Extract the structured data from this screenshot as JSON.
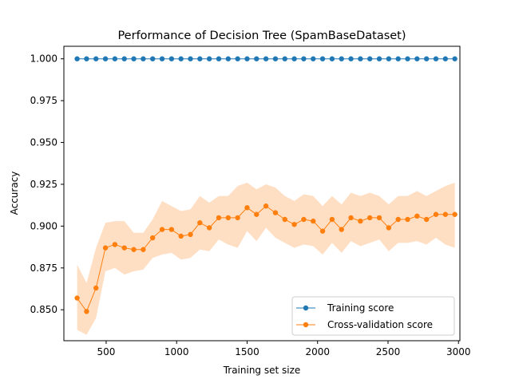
{
  "chart_data": {
    "type": "line",
    "title": "Performance of Decision Tree (SpamBaseDataset)",
    "xlabel": "Training set size",
    "ylabel": "Accuracy",
    "xlim": [
      200,
      3010
    ],
    "ylim": [
      0.8315,
      1.0075
    ],
    "xticks": [
      500,
      1000,
      1500,
      2000,
      2500,
      3000
    ],
    "yticks": [
      0.85,
      0.875,
      0.9,
      0.925,
      0.95,
      0.975,
      1.0
    ],
    "ytick_decimals": 3,
    "grid": false,
    "legend_position": "lower-right",
    "x": [
      294,
      361,
      428,
      495,
      562,
      629,
      696,
      763,
      830,
      897,
      964,
      1031,
      1098,
      1165,
      1232,
      1299,
      1366,
      1433,
      1500,
      1567,
      1634,
      1701,
      1768,
      1835,
      1902,
      1969,
      2036,
      2103,
      2170,
      2237,
      2304,
      2371,
      2438,
      2505,
      2572,
      2639,
      2706,
      2773,
      2840,
      2907,
      2974
    ],
    "series": [
      {
        "name": "Training score",
        "color": "#1f77b4",
        "values": [
          1.0,
          1.0,
          1.0,
          1.0,
          1.0,
          1.0,
          1.0,
          1.0,
          1.0,
          1.0,
          1.0,
          1.0,
          1.0,
          1.0,
          1.0,
          1.0,
          1.0,
          1.0,
          1.0,
          1.0,
          1.0,
          1.0,
          1.0,
          1.0,
          1.0,
          1.0,
          1.0,
          1.0,
          1.0,
          1.0,
          1.0,
          1.0,
          1.0,
          1.0,
          1.0,
          1.0,
          1.0,
          1.0,
          1.0,
          1.0,
          1.0
        ]
      },
      {
        "name": "Cross-validation score",
        "color": "#ff7f0e",
        "band_color": "#ffdfc4",
        "values": [
          0.857,
          0.849,
          0.863,
          0.887,
          0.889,
          0.887,
          0.886,
          0.886,
          0.893,
          0.898,
          0.898,
          0.894,
          0.895,
          0.902,
          0.899,
          0.905,
          0.905,
          0.905,
          0.911,
          0.907,
          0.912,
          0.908,
          0.904,
          0.901,
          0.904,
          0.903,
          0.897,
          0.904,
          0.898,
          0.905,
          0.903,
          0.905,
          0.905,
          0.899,
          0.904,
          0.904,
          0.906,
          0.904,
          0.907,
          0.907,
          0.907
        ],
        "band_upper": [
          0.877,
          0.866,
          0.887,
          0.902,
          0.903,
          0.903,
          0.896,
          0.896,
          0.904,
          0.915,
          0.912,
          0.909,
          0.91,
          0.918,
          0.914,
          0.918,
          0.918,
          0.924,
          0.926,
          0.922,
          0.925,
          0.923,
          0.918,
          0.915,
          0.919,
          0.918,
          0.912,
          0.918,
          0.913,
          0.92,
          0.918,
          0.92,
          0.918,
          0.913,
          0.918,
          0.918,
          0.921,
          0.918,
          0.921,
          0.924,
          0.926
        ],
        "band_lower": [
          0.838,
          0.835,
          0.845,
          0.873,
          0.875,
          0.871,
          0.873,
          0.874,
          0.881,
          0.883,
          0.884,
          0.88,
          0.881,
          0.886,
          0.885,
          0.892,
          0.889,
          0.887,
          0.897,
          0.891,
          0.899,
          0.893,
          0.89,
          0.887,
          0.889,
          0.888,
          0.883,
          0.89,
          0.884,
          0.891,
          0.888,
          0.89,
          0.892,
          0.885,
          0.89,
          0.89,
          0.891,
          0.889,
          0.893,
          0.889,
          0.887
        ]
      }
    ]
  }
}
